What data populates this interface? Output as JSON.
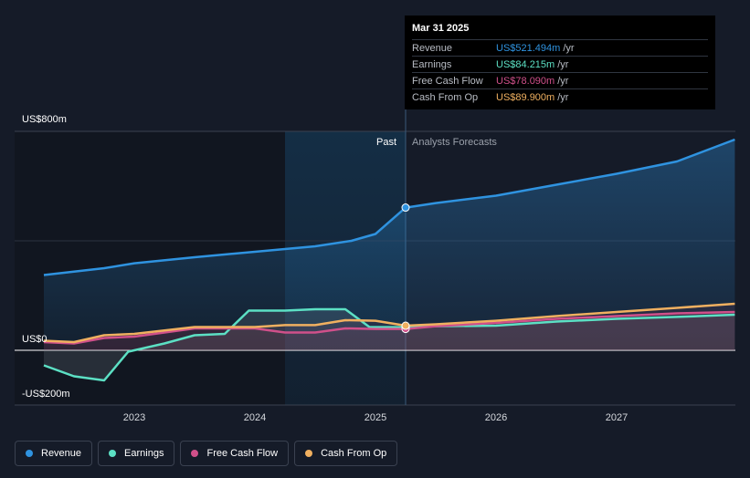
{
  "tooltip": {
    "date": "Mar 31 2025",
    "rows": [
      {
        "name": "Revenue",
        "value": "US$521.494m",
        "unit": "/yr",
        "color": "#2f93e0"
      },
      {
        "name": "Earnings",
        "value": "US$84.215m",
        "unit": "/yr",
        "color": "#5ce0c4"
      },
      {
        "name": "Free Cash Flow",
        "value": "US$78.090m",
        "unit": "/yr",
        "color": "#d0508a"
      },
      {
        "name": "Cash From Op",
        "value": "US$89.900m",
        "unit": "/yr",
        "color": "#f0b060"
      }
    ]
  },
  "labels": {
    "past": "Past",
    "forecast": "Analysts Forecasts"
  },
  "legend": [
    {
      "name": "Revenue",
      "color": "#2f93e0"
    },
    {
      "name": "Earnings",
      "color": "#5ce0c4"
    },
    {
      "name": "Free Cash Flow",
      "color": "#d0508a"
    },
    {
      "name": "Cash From Op",
      "color": "#f0b060"
    }
  ],
  "chart_data": {
    "type": "line",
    "y_tick_labels": [
      "US$800m",
      "US$0",
      "-US$200m"
    ],
    "x_tick_labels": [
      "2023",
      "2024",
      "2025",
      "2026",
      "2027"
    ],
    "ylim": [
      -200,
      800
    ],
    "xlim": [
      2022.0,
      2028.0
    ],
    "grid": true,
    "legend_position": "bottom",
    "past_until": 2025.25,
    "highlight_start": 2024.25,
    "series": [
      {
        "name": "Revenue",
        "color": "#2f93e0",
        "points": [
          [
            2022.25,
            275
          ],
          [
            2022.75,
            300
          ],
          [
            2023.0,
            318
          ],
          [
            2023.5,
            340
          ],
          [
            2024.0,
            360
          ],
          [
            2024.5,
            380
          ],
          [
            2024.8,
            400
          ],
          [
            2025.0,
            425
          ],
          [
            2025.25,
            521.5
          ],
          [
            2025.5,
            538
          ],
          [
            2026.0,
            565
          ],
          [
            2026.5,
            605
          ],
          [
            2027.0,
            645
          ],
          [
            2027.5,
            690
          ],
          [
            2027.98,
            770
          ]
        ]
      },
      {
        "name": "Earnings",
        "color": "#5ce0c4",
        "points": [
          [
            2022.25,
            -55
          ],
          [
            2022.5,
            -95
          ],
          [
            2022.75,
            -110
          ],
          [
            2022.95,
            -5
          ],
          [
            2023.25,
            25
          ],
          [
            2023.5,
            55
          ],
          [
            2023.75,
            60
          ],
          [
            2023.95,
            145
          ],
          [
            2024.25,
            145
          ],
          [
            2024.5,
            150
          ],
          [
            2024.75,
            150
          ],
          [
            2024.95,
            85
          ],
          [
            2025.25,
            84.2
          ],
          [
            2025.5,
            88
          ],
          [
            2026.0,
            90
          ],
          [
            2026.5,
            105
          ],
          [
            2027.0,
            115
          ],
          [
            2027.5,
            122
          ],
          [
            2027.98,
            130
          ]
        ]
      },
      {
        "name": "Free Cash Flow",
        "color": "#d0508a",
        "points": [
          [
            2022.25,
            30
          ],
          [
            2022.5,
            25
          ],
          [
            2022.75,
            45
          ],
          [
            2023.0,
            50
          ],
          [
            2023.5,
            80
          ],
          [
            2024.0,
            80
          ],
          [
            2024.25,
            65
          ],
          [
            2024.5,
            65
          ],
          [
            2024.75,
            80
          ],
          [
            2025.0,
            78
          ],
          [
            2025.25,
            78.1
          ],
          [
            2025.5,
            88
          ],
          [
            2026.0,
            100
          ],
          [
            2026.5,
            115
          ],
          [
            2027.0,
            125
          ],
          [
            2027.5,
            135
          ],
          [
            2027.98,
            140
          ]
        ]
      },
      {
        "name": "Cash From Op",
        "color": "#f0b060",
        "points": [
          [
            2022.25,
            35
          ],
          [
            2022.5,
            30
          ],
          [
            2022.75,
            55
          ],
          [
            2023.0,
            60
          ],
          [
            2023.5,
            85
          ],
          [
            2024.0,
            85
          ],
          [
            2024.25,
            92
          ],
          [
            2024.5,
            92
          ],
          [
            2024.75,
            110
          ],
          [
            2025.0,
            108
          ],
          [
            2025.25,
            89.9
          ],
          [
            2025.5,
            95
          ],
          [
            2026.0,
            108
          ],
          [
            2026.5,
            125
          ],
          [
            2027.0,
            140
          ],
          [
            2027.5,
            155
          ],
          [
            2027.98,
            170
          ]
        ]
      }
    ]
  }
}
